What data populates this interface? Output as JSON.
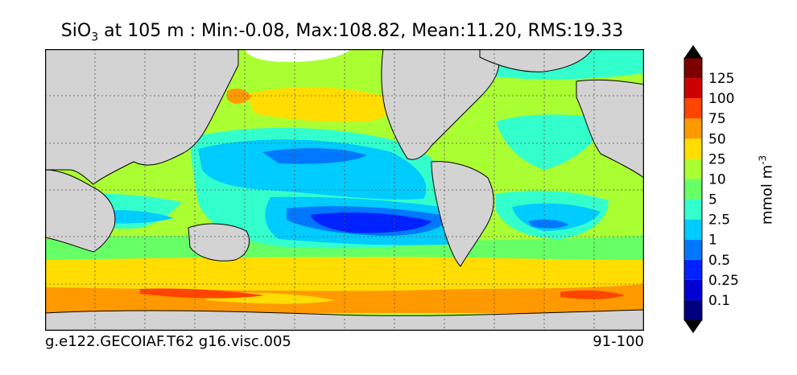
{
  "title": {
    "species": "SiO",
    "species_sub": "3",
    "rest": " at 105 m : Min:-0.08, Max:108.82, Mean:11.20, RMS:19.33"
  },
  "footer": {
    "case_name": "g.e122.GECOIAF.T62 g16.visc.005",
    "years": "91-100"
  },
  "colorbar": {
    "unit": "mmol m",
    "unit_exp": "-3",
    "levels": [
      "0.1",
      "0.25",
      "0.5",
      "1",
      "2.5",
      "5",
      "10",
      "25",
      "50",
      "75",
      "100",
      "125"
    ],
    "colors": [
      "#00007f",
      "#0000d4",
      "#0022ff",
      "#0077ff",
      "#00ccff",
      "#33ffcc",
      "#66ff66",
      "#aaff33",
      "#ffdd00",
      "#ff9900",
      "#ff4400",
      "#cc0000",
      "#7f0000"
    ]
  },
  "map": {
    "land_color": "#d3d3d3",
    "ice_color": "#ffffff"
  }
}
